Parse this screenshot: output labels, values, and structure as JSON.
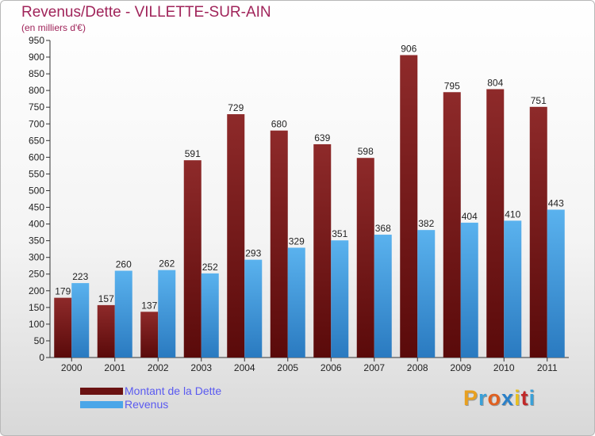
{
  "title": "Revenus/Dette - VILLETTE-SUR-AIN",
  "subtitle": "(en milliers d'€)",
  "colors": {
    "title": "#a0245a",
    "dette_top": "#8e2a2a",
    "dette_bottom": "#5a0a0a",
    "revenus_top": "#5ab2ee",
    "revenus_bottom": "#2a7ac0",
    "legend_text": "#5a5af0"
  },
  "legend": [
    {
      "label": "Montant de la Dette",
      "color": "#6a1212"
    },
    {
      "label": "Revenus",
      "color": "#4aa6e8"
    }
  ],
  "logo": {
    "text": "Proxiti",
    "letter_colors": [
      "#e8a020",
      "#3aa0d8",
      "#e06020",
      "#2a80c8",
      "#e8c020",
      "#c02828",
      "#3aa0d8"
    ]
  },
  "chart_data": {
    "type": "bar",
    "categories": [
      "2000",
      "2001",
      "2002",
      "2003",
      "2004",
      "2005",
      "2006",
      "2007",
      "2008",
      "2009",
      "2010",
      "2011"
    ],
    "series": [
      {
        "name": "Montant de la Dette",
        "values": [
          179,
          157,
          137,
          591,
          729,
          680,
          639,
          598,
          906,
          795,
          804,
          751
        ]
      },
      {
        "name": "Revenus",
        "values": [
          223,
          260,
          262,
          252,
          293,
          329,
          351,
          368,
          382,
          404,
          410,
          443
        ]
      }
    ],
    "ylim": [
      0,
      950
    ],
    "yticks": [
      0,
      50,
      100,
      150,
      200,
      250,
      300,
      350,
      400,
      450,
      500,
      550,
      600,
      650,
      700,
      750,
      800,
      850,
      900,
      950
    ],
    "grid": false,
    "legend_position": "bottom-left"
  }
}
